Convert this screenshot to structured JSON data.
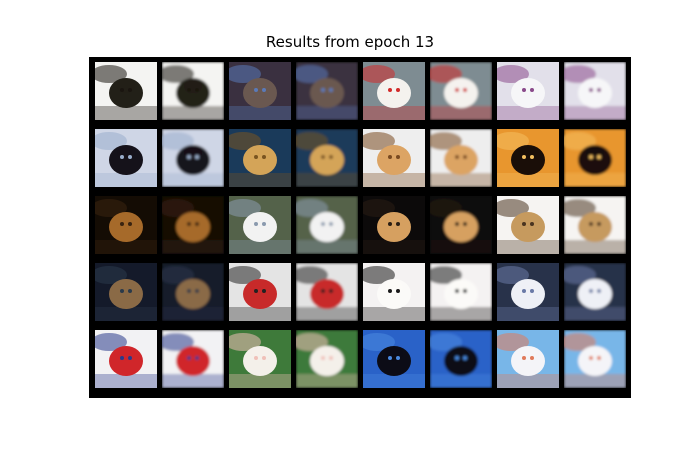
{
  "title": "Results from epoch 13",
  "grid": {
    "rows": 5,
    "cols": 8
  },
  "rows": [
    {
      "pairs": [
        {
          "subject": "white dog on white",
          "bg": "#f4f4f2",
          "accent": "#1a1510",
          "subject_color": "#222018"
        },
        {
          "subject": "dark dog scene",
          "bg": "#3a3040",
          "accent": "#5a7ab8",
          "subject_color": "#6a5850"
        },
        {
          "subject": "white dog with red hat",
          "bg": "#7e8c92",
          "accent": "#d22a2a",
          "subject_color": "#f4f2ee"
        },
        {
          "subject": "black and white dogs",
          "bg": "#e2e0ea",
          "accent": "#8a4a8a",
          "subject_color": "#f6f6f8"
        }
      ]
    },
    {
      "pairs": [
        {
          "subject": "black dog running on snow",
          "bg": "#cfd6e6",
          "accent": "#9aaecc",
          "subject_color": "#15121a"
        },
        {
          "subject": "golden puppy face",
          "bg": "#1a3a5a",
          "accent": "#7a5420",
          "subject_color": "#d4a458"
        },
        {
          "subject": "beagle portrait",
          "bg": "#eeeeee",
          "accent": "#7a4a20",
          "subject_color": "#dca464"
        },
        {
          "subject": "deer silhouette on orange",
          "bg": "#e8962e",
          "accent": "#f4c060",
          "subject_color": "#1a0e08"
        }
      ]
    },
    {
      "pairs": [
        {
          "subject": "brown dog in dark",
          "bg": "#140c04",
          "accent": "#3a2410",
          "subject_color": "#a66a2a"
        },
        {
          "subject": "white boat on water",
          "bg": "#54624a",
          "accent": "#8a9aae",
          "subject_color": "#f2f2f2"
        },
        {
          "subject": "small dog in shadow",
          "bg": "#0c0a0a",
          "accent": "#2a1e14",
          "subject_color": "#d6a060"
        },
        {
          "subject": "tan dog standing",
          "bg": "#f6f4f2",
          "accent": "#4a3420",
          "subject_color": "#c69a5e"
        }
      ]
    },
    {
      "pairs": [
        {
          "subject": "deer in dark forest",
          "bg": "#141a2a",
          "accent": "#2a3a4a",
          "subject_color": "#8a6a46"
        },
        {
          "subject": "red truck",
          "bg": "#e4e4e4",
          "accent": "#222222",
          "subject_color": "#c82a2a"
        },
        {
          "subject": "white fluffy dog face",
          "bg": "#f4f2f2",
          "accent": "#1a1a1a",
          "subject_color": "#fbfaf8"
        },
        {
          "subject": "white truck",
          "bg": "#28324a",
          "accent": "#6a7aa6",
          "subject_color": "#eef0f6"
        }
      ]
    },
    {
      "pairs": [
        {
          "subject": "red fire truck",
          "bg": "#f2f2f4",
          "accent": "#2a3a8a",
          "subject_color": "#d0262a"
        },
        {
          "subject": "white horse on grass",
          "bg": "#3e7a3a",
          "accent": "#f0c0b8",
          "subject_color": "#f4f0ea"
        },
        {
          "subject": "black bird in blue sky",
          "bg": "#2a62c8",
          "accent": "#4a8ae0",
          "subject_color": "#0c0c16"
        },
        {
          "subject": "airplane over blue",
          "bg": "#78b6e8",
          "accent": "#e07a5a",
          "subject_color": "#f4f4f8"
        }
      ]
    }
  ]
}
